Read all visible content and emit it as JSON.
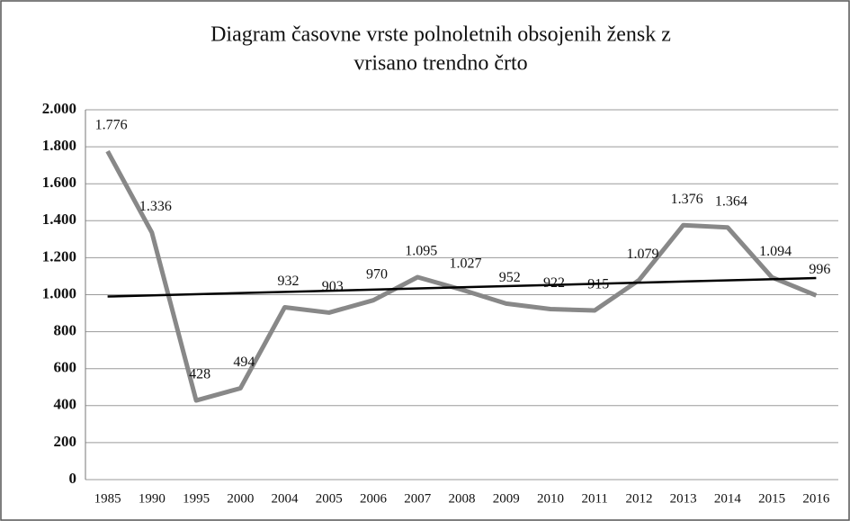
{
  "chart_data": {
    "type": "line",
    "title": [
      "Diagram časovne vrste polnoletnih obsojenih žensk z",
      "vrisano trendno črto"
    ],
    "categories": [
      "1985",
      "1990",
      "1995",
      "2000",
      "2004",
      "2005",
      "2006",
      "2007",
      "2008",
      "2009",
      "2010",
      "2011",
      "2012",
      "2013",
      "2014",
      "2015",
      "2016"
    ],
    "series": [
      {
        "color": "#888888",
        "values": [
          1776,
          1336,
          428,
          494,
          932,
          903,
          970,
          1095,
          1027,
          952,
          922,
          915,
          1079,
          1376,
          1364,
          1094,
          996
        ],
        "value_labels": [
          "1.776",
          "1.336",
          "428",
          "494",
          "932",
          "903",
          "970",
          "1.095",
          "1.027",
          "952",
          "922",
          "915",
          "1.079",
          "1.376",
          "1.364",
          "1.094",
          "996"
        ]
      }
    ],
    "trendline": {
      "color": "#000000",
      "values": [
        990,
        1090
      ]
    },
    "ylim": [
      0,
      2000
    ],
    "yticks": [
      0,
      200,
      400,
      600,
      800,
      {
        "value": 1000,
        "label": "1.000"
      },
      {
        "value": 1200,
        "label": "1.200"
      },
      {
        "value": 1400,
        "label": "1.400"
      },
      {
        "value": 1600,
        "label": "1.600"
      },
      {
        "value": 1800,
        "label": "1.800"
      },
      {
        "value": 2000,
        "label": "2.000"
      }
    ],
    "grid": true
  }
}
